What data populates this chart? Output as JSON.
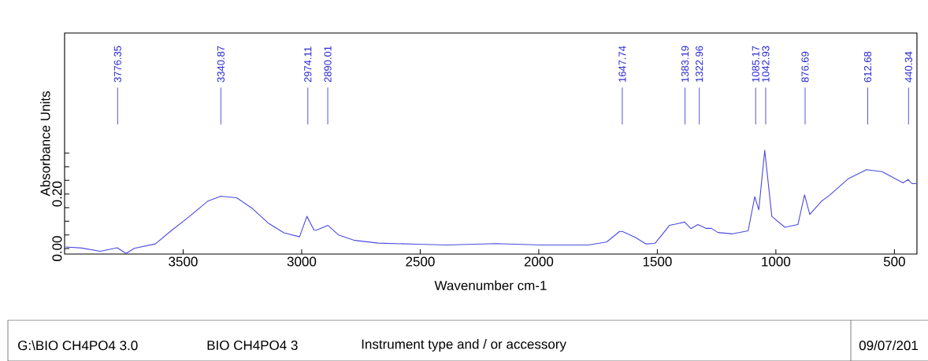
{
  "chart_data": {
    "type": "line",
    "xlabel": "Wavenumber cm-1",
    "ylabel": "Absorbance Units",
    "xlim": [
      4000,
      405
    ],
    "ylim": [
      -0.02,
      0.79
    ],
    "xticks": [
      3500,
      3000,
      2500,
      2000,
      1500,
      1000,
      500
    ],
    "yticks": [
      {
        "value": 0,
        "label": "0.00"
      },
      {
        "value": 0.05,
        "label": null
      },
      {
        "value": 0.1,
        "label": null
      },
      {
        "value": 0.15,
        "label": null
      },
      {
        "value": 0.2,
        "label": "0.20"
      },
      {
        "value": 0.25,
        "label": null
      },
      {
        "value": 0.3,
        "label": null
      },
      {
        "value": 0.35,
        "label": null
      }
    ],
    "grid": false,
    "marker": "none",
    "line_style": "solid",
    "series": [
      {
        "color": "#4a4ae0",
        "x": [
          3995,
          3928,
          3849,
          3778,
          3741,
          3706,
          3617,
          3551,
          3473,
          3396,
          3341,
          3274,
          3208,
          3142,
          3075,
          3009,
          2978,
          2948,
          2939,
          2889,
          2843,
          2776,
          2677,
          2511,
          2389,
          2179,
          1991,
          1792,
          1714,
          1659,
          1648,
          1593,
          1548,
          1510,
          1482,
          1449,
          1416,
          1385,
          1358,
          1329,
          1294,
          1272,
          1244,
          1183,
          1117,
          1089,
          1072,
          1047,
          1017,
          962,
          907,
          879,
          857,
          807,
          774,
          696,
          618,
          552,
          464,
          442,
          426,
          407
        ],
        "values": [
          0.006,
          0.002,
          -0.01,
          0.003,
          -0.018,
          0.001,
          0.017,
          0.065,
          0.118,
          0.174,
          0.192,
          0.186,
          0.147,
          0.094,
          0.058,
          0.043,
          0.118,
          0.068,
          0.067,
          0.085,
          0.049,
          0.03,
          0.02,
          0.016,
          0.013,
          0.018,
          0.013,
          0.013,
          0.024,
          0.063,
          0.063,
          0.041,
          0.017,
          0.019,
          0.049,
          0.085,
          0.091,
          0.097,
          0.073,
          0.088,
          0.074,
          0.074,
          0.059,
          0.054,
          0.065,
          0.19,
          0.142,
          0.36,
          0.118,
          0.078,
          0.088,
          0.197,
          0.125,
          0.174,
          0.195,
          0.255,
          0.289,
          0.282,
          0.241,
          0.253,
          0.238,
          0.238
        ]
      }
    ],
    "annotations": [
      {
        "text": "3776.35",
        "x": 3776.35
      },
      {
        "text": "3340.87",
        "x": 3340.87
      },
      {
        "text": "2974.11",
        "x": 2974.11
      },
      {
        "text": "2890.01",
        "x": 2890.01
      },
      {
        "text": "1647.74",
        "x": 1647.74
      },
      {
        "text": "1383.19",
        "x": 1383.19
      },
      {
        "text": "1322.96",
        "x": 1322.96
      },
      {
        "text": "1085.17",
        "x": 1085.17
      },
      {
        "text": "1042.93",
        "x": 1042.93
      },
      {
        "text": "876.69",
        "x": 876.69
      },
      {
        "text": "612.68",
        "x": 612.68
      },
      {
        "text": "440.34",
        "x": 440.34
      },
      "G:\\BIO CH4PO4 3.0",
      "BIO CH4PO4 3",
      "Instrument type and / or accessory",
      "09/07/201"
    ]
  }
}
